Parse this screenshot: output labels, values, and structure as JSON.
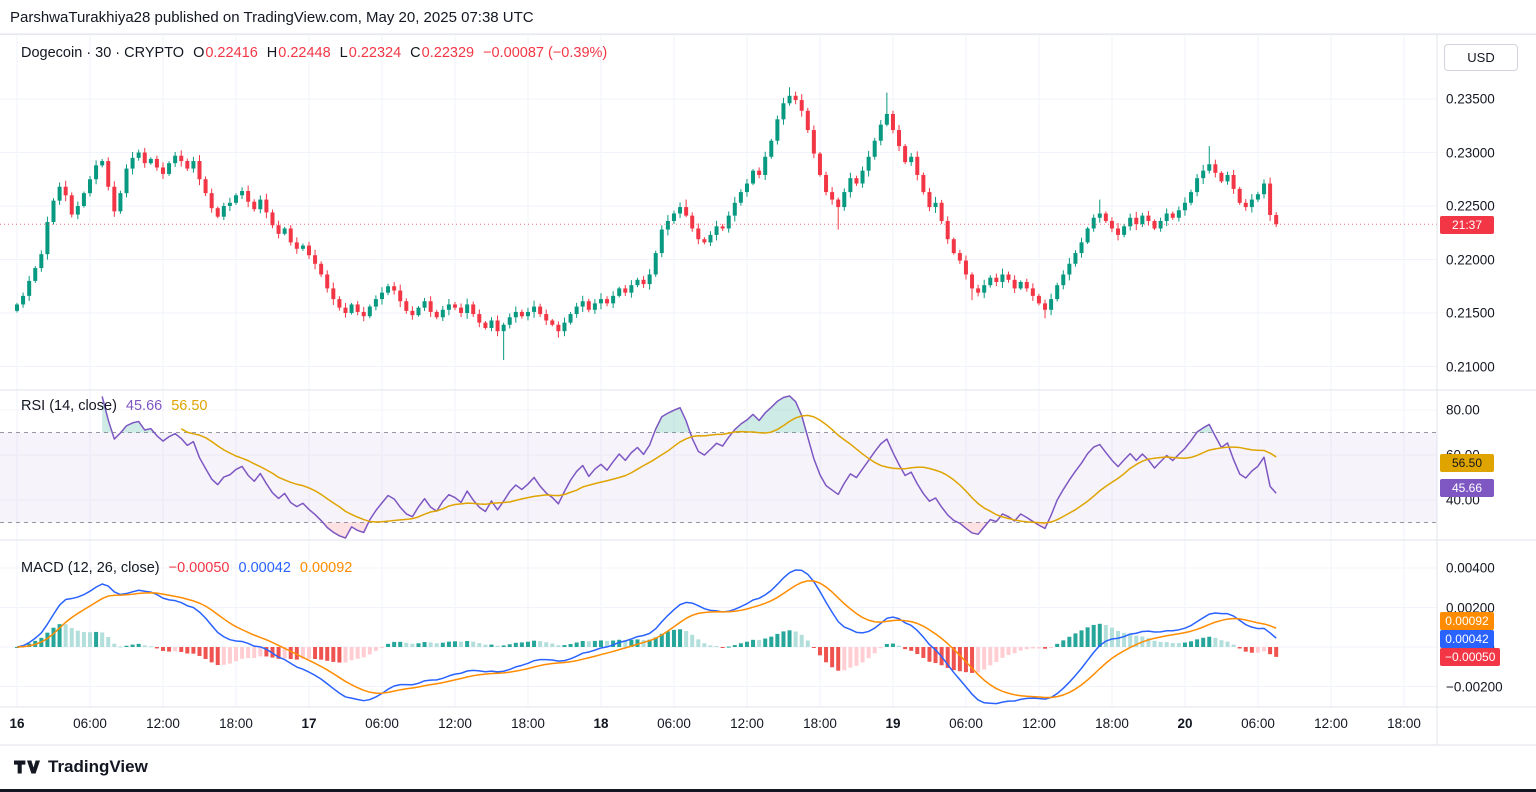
{
  "header": {
    "publish_line": "ParshwaTurakhiya28 published on TradingView.com, May 20, 2025 07:38 UTC"
  },
  "toolbar": {
    "currency_label": "USD"
  },
  "legend": {
    "symbol_title": "Dogecoin · 30 · CRYPTO",
    "open_label": "O",
    "open_value": "0.22416",
    "high_label": "H",
    "high_value": "0.22448",
    "low_label": "L",
    "low_value": "0.22324",
    "close_label": "C",
    "close_value": "0.22329",
    "change_value": "−0.00087 (−0.39%)"
  },
  "price_axis": {
    "labels": [
      {
        "text": "0.23500",
        "value": 0.235
      },
      {
        "text": "0.23000",
        "value": 0.23
      },
      {
        "text": "0.22500",
        "value": 0.225
      },
      {
        "text": "0.22000",
        "value": 0.22
      },
      {
        "text": "0.21500",
        "value": 0.215
      },
      {
        "text": "0.21000",
        "value": 0.21
      }
    ],
    "countdown_badge": "21:37"
  },
  "rsi_panel": {
    "title": "RSI (14, close)",
    "value": "45.66",
    "ma_value": "56.50",
    "line_badge": "45.66",
    "ma_badge": "56.50",
    "axis_labels": [
      {
        "text": "80.00",
        "value": 80
      },
      {
        "text": "60.00",
        "value": 60
      },
      {
        "text": "40.00",
        "value": 40
      }
    ]
  },
  "macd_panel": {
    "title": "MACD (12, 26, close)",
    "hist_value": "−0.00050",
    "macd_value": "0.00042",
    "signal_value": "0.00092",
    "signal_badge": "0.00092",
    "macd_badge": "0.00042",
    "hist_badge": "−0.00050",
    "axis_labels": [
      {
        "text": "0.00400",
        "value": 0.004
      },
      {
        "text": "0.00200",
        "value": 0.002
      },
      {
        "text": "0.00000",
        "value": 0.0
      },
      {
        "text": "−0.00200",
        "value": -0.002
      }
    ]
  },
  "time_axis": {
    "labels": [
      "16",
      "06:00",
      "12:00",
      "18:00",
      "17",
      "06:00",
      "12:00",
      "18:00",
      "18",
      "06:00",
      "12:00",
      "18:00",
      "19",
      "06:00",
      "12:00",
      "18:00",
      "20",
      "06:00",
      "12:00",
      "18:00"
    ]
  },
  "footer": {
    "brand": "TradingView"
  },
  "colors": {
    "up": "#089981",
    "down": "#f23645",
    "rsi": "#7e57c2",
    "rsi_ma": "#dfa400",
    "macd": "#2962ff",
    "signal": "#ff8c00",
    "hist_up": "#26a69a",
    "hist_up_weak": "#b2dfdb",
    "hist_down": "#ef5350",
    "hist_down_weak": "#ffcdd2",
    "grid": "#f0f3fa",
    "pane_border": "#e0e3eb",
    "band_fill": "rgba(126,87,194,0.07)",
    "band_line": "#9598a1",
    "axis_text": "#131722"
  },
  "chart_data": {
    "type": "candlestick",
    "symbol": "Dogecoin",
    "market": "CRYPTO",
    "interval_minutes": 30,
    "start": "2025-05-16 00:00 UTC",
    "current_ohlc": {
      "open": 0.22416,
      "high": 0.22448,
      "low": 0.22324,
      "close": 0.22329,
      "change": -0.00087,
      "change_pct": -0.39
    },
    "current_price_line": 0.22329,
    "price_gridlines": [
      0.235,
      0.23,
      0.225,
      0.22,
      0.215,
      0.21
    ],
    "y_axis_range_main": [
      0.2078,
      0.2411
    ],
    "rsi_range_visible": [
      22,
      88
    ],
    "macd_range_visible": [
      -0.0029,
      0.0052
    ],
    "indicators": {
      "rsi": {
        "length": 14,
        "source": "close",
        "current": 45.66,
        "ma_current": 56.5,
        "upper_band": 70,
        "lower_band": 30
      },
      "macd": {
        "fast": 12,
        "slow": 26,
        "signal": 9,
        "macd_current": 0.00042,
        "signal_current": 0.00092,
        "hist_current": -0.0005
      }
    },
    "closes": [
      0.2158,
      0.2166,
      0.218,
      0.2192,
      0.2205,
      0.2235,
      0.2255,
      0.2268,
      0.226,
      0.2242,
      0.225,
      0.2262,
      0.2275,
      0.2288,
      0.2292,
      0.2268,
      0.2245,
      0.2262,
      0.2285,
      0.2295,
      0.23,
      0.229,
      0.2294,
      0.2286,
      0.228,
      0.229,
      0.2297,
      0.2292,
      0.2285,
      0.2292,
      0.2275,
      0.2262,
      0.2248,
      0.224,
      0.225,
      0.2253,
      0.226,
      0.2264,
      0.2254,
      0.2247,
      0.2256,
      0.2244,
      0.2232,
      0.2224,
      0.2229,
      0.2216,
      0.221,
      0.2213,
      0.2204,
      0.2196,
      0.2186,
      0.2173,
      0.2163,
      0.2155,
      0.215,
      0.2158,
      0.2151,
      0.2147,
      0.2156,
      0.2163,
      0.2169,
      0.2175,
      0.2171,
      0.2161,
      0.2152,
      0.2148,
      0.2155,
      0.2161,
      0.2151,
      0.2146,
      0.2153,
      0.2158,
      0.2155,
      0.215,
      0.2158,
      0.2149,
      0.2141,
      0.2136,
      0.2143,
      0.2133,
      0.2139,
      0.2146,
      0.2151,
      0.2147,
      0.2151,
      0.2156,
      0.2149,
      0.2143,
      0.2139,
      0.2133,
      0.2141,
      0.2149,
      0.2156,
      0.2161,
      0.2153,
      0.2159,
      0.2163,
      0.2159,
      0.2166,
      0.2173,
      0.2169,
      0.2176,
      0.2181,
      0.2177,
      0.2186,
      0.2206,
      0.2228,
      0.2236,
      0.2243,
      0.2249,
      0.2241,
      0.2229,
      0.2219,
      0.2216,
      0.2223,
      0.2231,
      0.2229,
      0.2241,
      0.2253,
      0.2263,
      0.2271,
      0.2283,
      0.2279,
      0.2296,
      0.2311,
      0.2331,
      0.2346,
      0.2353,
      0.2349,
      0.2339,
      0.2321,
      0.2299,
      0.2279,
      0.2263,
      0.2256,
      0.2249,
      0.2263,
      0.2276,
      0.2271,
      0.2283,
      0.2296,
      0.2311,
      0.2326,
      0.2336,
      0.2321,
      0.2306,
      0.2291,
      0.2296,
      0.2279,
      0.2263,
      0.2249,
      0.2253,
      0.2236,
      0.2219,
      0.2206,
      0.2199,
      0.2186,
      0.2173,
      0.2169,
      0.2176,
      0.2183,
      0.2179,
      0.2186,
      0.2181,
      0.2173,
      0.2179,
      0.2173,
      0.2166,
      0.2159,
      0.2153,
      0.2163,
      0.2176,
      0.2186,
      0.2196,
      0.2206,
      0.2216,
      0.2229,
      0.2239,
      0.2243,
      0.2236,
      0.2229,
      0.2223,
      0.2231,
      0.2239,
      0.2233,
      0.2241,
      0.2236,
      0.2229,
      0.2236,
      0.2243,
      0.2239,
      0.2246,
      0.2253,
      0.2263,
      0.2276,
      0.2283,
      0.2289,
      0.2281,
      0.2273,
      0.2279,
      0.2266,
      0.2253,
      0.2249,
      0.2256,
      0.2261,
      0.2271,
      0.22416,
      0.22329
    ],
    "wick_high_overrides": {
      "110": 0.2256,
      "127": 0.2361,
      "143": 0.2356,
      "178": 0.2256,
      "196": 0.2306
    },
    "wick_low_overrides": {
      "80": 0.2106,
      "89": 0.2127,
      "135": 0.2228,
      "157": 0.2162,
      "169": 0.2145
    }
  }
}
